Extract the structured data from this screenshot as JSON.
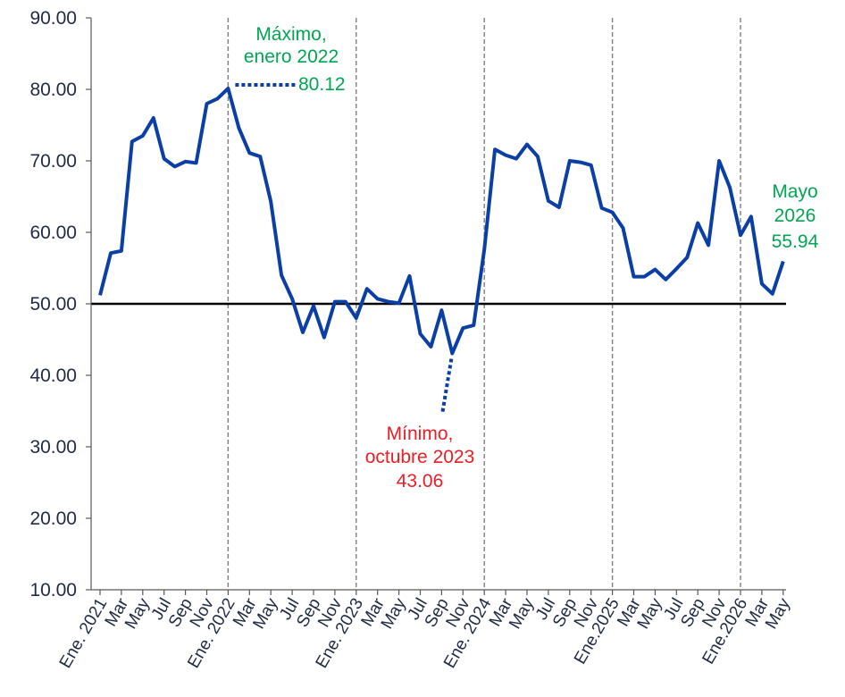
{
  "chart_data": {
    "type": "line",
    "title": "",
    "xlabel": "",
    "ylabel": "",
    "ylim": [
      10,
      90
    ],
    "yticks": [
      "10.00",
      "20.00",
      "30.00",
      "40.00",
      "50.00",
      "60.00",
      "70.00",
      "80.00",
      "90.00"
    ],
    "reference_line": 50,
    "x_tick_labels": [
      "Ene. 2021",
      "Mar",
      "May",
      "Jul",
      "Sep",
      "Nov",
      "Ene. 2022",
      "Mar",
      "May",
      "Jul",
      "Sep",
      "Nov",
      "Ene. 2023",
      "Mar",
      "May",
      "Jul",
      "Sep",
      "Nov",
      "Ene. 2024",
      "Mar",
      "May",
      "Jul",
      "Sep",
      "Nov",
      "Ene.2025",
      "Mar",
      "May",
      "Jul",
      "Sep",
      "Nov",
      "Ene.2026",
      "Mar",
      "May"
    ],
    "year_marker_months": [
      "Ene. 2022",
      "Ene. 2023",
      "Ene. 2024",
      "Ene.2025",
      "Ene.2026"
    ],
    "series": [
      {
        "color": "#0b3fa6",
        "values": [
          51.2,
          57.1,
          57.4,
          72.7,
          73.5,
          76.0,
          70.3,
          69.2,
          69.9,
          69.7,
          78.0,
          78.7,
          80.12,
          74.6,
          71.1,
          70.6,
          64.3,
          54.0,
          50.7,
          46.0,
          49.7,
          45.3,
          50.3,
          50.3,
          48.0,
          52.1,
          50.7,
          50.3,
          50.1,
          53.9,
          45.8,
          44.0,
          49.1,
          43.06,
          46.6,
          47.0,
          57.6,
          71.6,
          70.8,
          70.3,
          72.3,
          70.6,
          64.4,
          63.5,
          70.0,
          69.8,
          69.4,
          63.4,
          62.8,
          60.6,
          53.8,
          53.8,
          54.8,
          53.4,
          54.9,
          56.5,
          61.3,
          58.2,
          70.0,
          66.3,
          59.6,
          62.2,
          52.8,
          51.4,
          55.94
        ]
      }
    ],
    "annotations": {
      "max": {
        "line1": "Máximo,",
        "line2": "enero 2022",
        "value": "80.12",
        "color": "#00a651"
      },
      "min": {
        "line1": "Mínimo,",
        "line2": "octubre 2023",
        "value": "43.06",
        "color": "#ee1c25"
      },
      "last": {
        "line1": "Mayo",
        "line2": "2026",
        "value": "55.94",
        "color": "#00a651"
      }
    }
  }
}
